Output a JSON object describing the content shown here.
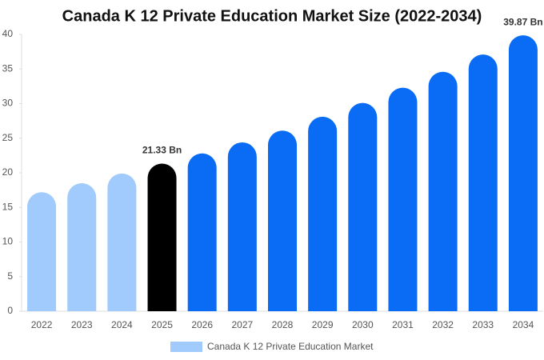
{
  "chart_data": {
    "type": "bar",
    "title": "Canada K 12 Private Education Market Size (2022-2034)",
    "categories": [
      "2022",
      "2023",
      "2024",
      "2025",
      "2026",
      "2027",
      "2028",
      "2029",
      "2030",
      "2031",
      "2032",
      "2033",
      "2034"
    ],
    "series": [
      {
        "name": "Canada K 12 Private Education Market",
        "color": "#a0cbfc",
        "colors": [
          "#a0cbfc",
          "#a0cbfc",
          "#a0cbfc",
          "#000000",
          "#0a6cf5",
          "#0a6cf5",
          "#0a6cf5",
          "#0a6cf5",
          "#0a6cf5",
          "#0a6cf5",
          "#0a6cf5",
          "#0a6cf5",
          "#0a6cf5"
        ],
        "values": [
          17.2,
          18.5,
          19.9,
          21.33,
          22.8,
          24.4,
          26.1,
          28.1,
          30.1,
          32.3,
          34.6,
          37.1,
          39.87
        ],
        "value_labels": [
          null,
          null,
          null,
          "21.33 Bn",
          null,
          null,
          null,
          null,
          null,
          null,
          null,
          null,
          "39.87 Bn"
        ]
      }
    ],
    "ylim": [
      0,
      40
    ],
    "yticks": [
      0,
      5,
      10,
      15,
      20,
      25,
      30,
      35,
      40
    ],
    "grid": false
  }
}
